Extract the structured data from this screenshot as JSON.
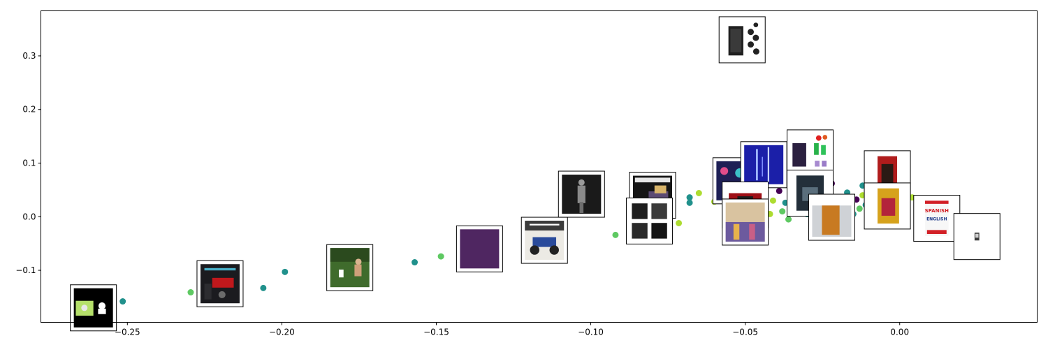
{
  "chart_data": {
    "type": "scatter",
    "title": "",
    "xlabel": "",
    "ylabel": "",
    "xlim": [
      -0.278,
      0.0445
    ],
    "ylim": [
      -0.197,
      0.384
    ],
    "x_ticks": [
      -0.25,
      -0.2,
      -0.15,
      -0.1,
      -0.05,
      0.0
    ],
    "x_tick_labels": [
      "−0.25",
      "−0.20",
      "−0.15",
      "−0.10",
      "−0.05",
      "0.00"
    ],
    "y_ticks": [
      -0.1,
      0.0,
      0.1,
      0.2,
      0.3
    ],
    "y_tick_labels": [
      "−0.1",
      "0.0",
      "0.1",
      "0.2",
      "0.3"
    ],
    "grid": false,
    "legend": "none",
    "colors": {
      "purple": "#440154",
      "blue": "#3b528b",
      "teal": "#21918c",
      "green": "#5ec962",
      "lime": "#addc30",
      "thumb_border": "#000000"
    },
    "points": [
      {
        "x": -0.2515,
        "y": -0.158,
        "c": "teal"
      },
      {
        "x": -0.2295,
        "y": -0.141,
        "c": "green"
      },
      {
        "x": -0.206,
        "y": -0.133,
        "c": "teal"
      },
      {
        "x": -0.199,
        "y": -0.103,
        "c": "teal"
      },
      {
        "x": -0.157,
        "y": -0.085,
        "c": "teal"
      },
      {
        "x": -0.1485,
        "y": -0.074,
        "c": "green"
      },
      {
        "x": -0.092,
        "y": -0.034,
        "c": "green"
      },
      {
        "x": -0.0715,
        "y": -0.012,
        "c": "lime"
      },
      {
        "x": -0.068,
        "y": 0.026,
        "c": "teal"
      },
      {
        "x": -0.068,
        "y": 0.036,
        "c": "teal"
      },
      {
        "x": -0.065,
        "y": 0.044,
        "c": "lime"
      },
      {
        "x": -0.06,
        "y": 0.028,
        "c": "lime"
      },
      {
        "x": -0.059,
        "y": 0.04,
        "c": "green"
      },
      {
        "x": -0.054,
        "y": 0.02,
        "c": "teal"
      },
      {
        "x": -0.0505,
        "y": 0.03,
        "c": "lime"
      },
      {
        "x": -0.047,
        "y": 0.015,
        "c": "lime"
      },
      {
        "x": -0.044,
        "y": 0.05,
        "c": "green"
      },
      {
        "x": -0.042,
        "y": 0.005,
        "c": "lime"
      },
      {
        "x": -0.041,
        "y": 0.03,
        "c": "lime"
      },
      {
        "x": -0.039,
        "y": 0.048,
        "c": "purple"
      },
      {
        "x": -0.038,
        "y": 0.01,
        "c": "green"
      },
      {
        "x": -0.037,
        "y": 0.026,
        "c": "teal"
      },
      {
        "x": -0.036,
        "y": -0.005,
        "c": "green"
      },
      {
        "x": -0.035,
        "y": 0.035,
        "c": "purple"
      },
      {
        "x": -0.034,
        "y": 0.04,
        "c": "lime"
      },
      {
        "x": -0.0325,
        "y": 0.015,
        "c": "green"
      },
      {
        "x": -0.031,
        "y": 0.022,
        "c": "blue"
      },
      {
        "x": -0.03,
        "y": 0.005,
        "c": "teal"
      },
      {
        "x": -0.029,
        "y": 0.05,
        "c": "green"
      },
      {
        "x": -0.028,
        "y": 0.02,
        "c": "teal"
      },
      {
        "x": -0.027,
        "y": -0.003,
        "c": "green"
      },
      {
        "x": -0.026,
        "y": 0.03,
        "c": "blue"
      },
      {
        "x": -0.025,
        "y": 0.055,
        "c": "lime"
      },
      {
        "x": -0.024,
        "y": 0.01,
        "c": "purple"
      },
      {
        "x": -0.023,
        "y": 0.04,
        "c": "teal"
      },
      {
        "x": -0.022,
        "y": 0.062,
        "c": "purple"
      },
      {
        "x": -0.021,
        "y": 0.018,
        "c": "lime"
      },
      {
        "x": -0.02,
        "y": -0.002,
        "c": "green"
      },
      {
        "x": -0.019,
        "y": 0.03,
        "c": "green"
      },
      {
        "x": -0.018,
        "y": 0.012,
        "c": "blue"
      },
      {
        "x": -0.017,
        "y": 0.045,
        "c": "teal"
      },
      {
        "x": -0.016,
        "y": 0.025,
        "c": "lime"
      },
      {
        "x": -0.015,
        "y": 0.005,
        "c": "teal"
      },
      {
        "x": -0.014,
        "y": 0.032,
        "c": "purple"
      },
      {
        "x": -0.013,
        "y": 0.015,
        "c": "green"
      },
      {
        "x": -0.012,
        "y": 0.04,
        "c": "lime"
      },
      {
        "x": -0.011,
        "y": 0.022,
        "c": "teal"
      },
      {
        "x": -0.01,
        "y": 0.008,
        "c": "green"
      },
      {
        "x": -0.009,
        "y": 0.028,
        "c": "teal"
      },
      {
        "x": -0.008,
        "y": 0.055,
        "c": "lime"
      },
      {
        "x": -0.007,
        "y": 0.01,
        "c": "green"
      },
      {
        "x": -0.006,
        "y": 0.035,
        "c": "teal"
      },
      {
        "x": -0.005,
        "y": 0.018,
        "c": "purple"
      },
      {
        "x": -0.004,
        "y": 0.026,
        "c": "lime"
      },
      {
        "x": -0.003,
        "y": 0.005,
        "c": "teal"
      },
      {
        "x": -0.002,
        "y": 0.038,
        "c": "green"
      },
      {
        "x": 0.0,
        "y": 0.02,
        "c": "teal"
      },
      {
        "x": 0.001,
        "y": 0.03,
        "c": "lime"
      },
      {
        "x": 0.004,
        "y": 0.036,
        "c": "lime"
      },
      {
        "x": 0.006,
        "y": 0.024,
        "c": "green"
      },
      {
        "x": 0.008,
        "y": 0.015,
        "c": "teal"
      },
      {
        "x": -0.033,
        "y": 0.14,
        "c": "lime"
      },
      {
        "x": -0.029,
        "y": 0.132,
        "c": "teal"
      },
      {
        "x": -0.012,
        "y": 0.058,
        "c": "teal"
      },
      {
        "x": -0.049,
        "y": 0.095,
        "c": "purple"
      },
      {
        "x": -0.046,
        "y": 0.11,
        "c": "teal"
      }
    ],
    "thumbnails": [
      {
        "x": -0.261,
        "y": -0.17,
        "kind": "black-lime-moose"
      },
      {
        "x": -0.22,
        "y": -0.125,
        "kind": "dark-red-scooter"
      },
      {
        "x": -0.178,
        "y": -0.095,
        "kind": "grass-athlete"
      },
      {
        "x": -0.136,
        "y": -0.06,
        "kind": "solid-purple"
      },
      {
        "x": -0.115,
        "y": -0.044,
        "kind": "rc-truck"
      },
      {
        "x": -0.103,
        "y": 0.042,
        "kind": "bw-statue"
      },
      {
        "x": -0.08,
        "y": 0.04,
        "kind": "dark-poster"
      },
      {
        "x": -0.081,
        "y": -0.008,
        "kind": "bw-collage"
      },
      {
        "x": -0.053,
        "y": 0.067,
        "kind": "colorful-pattern"
      },
      {
        "x": -0.044,
        "y": 0.097,
        "kind": "blue-lightning"
      },
      {
        "x": -0.05,
        "y": 0.022,
        "kind": "red-console"
      },
      {
        "x": -0.05,
        "y": -0.01,
        "kind": "patterned-fabric"
      },
      {
        "x": -0.029,
        "y": 0.119,
        "kind": "stickers-sheet"
      },
      {
        "x": -0.029,
        "y": 0.044,
        "kind": "dark-book-cover"
      },
      {
        "x": -0.022,
        "y": -0.001,
        "kind": "orange-panel"
      },
      {
        "x": -0.004,
        "y": 0.08,
        "kind": "magazine-cover"
      },
      {
        "x": -0.004,
        "y": 0.02,
        "kind": "yellow-book"
      },
      {
        "x": 0.012,
        "y": -0.003,
        "kind": "spanish-english-book"
      },
      {
        "x": 0.025,
        "y": -0.037,
        "kind": "small-device"
      },
      {
        "x": -0.051,
        "y": 0.33,
        "kind": "black-suitcase"
      }
    ]
  },
  "thumbnail_text": {
    "spanish": "SPANISH",
    "english": "ENGLISH"
  }
}
